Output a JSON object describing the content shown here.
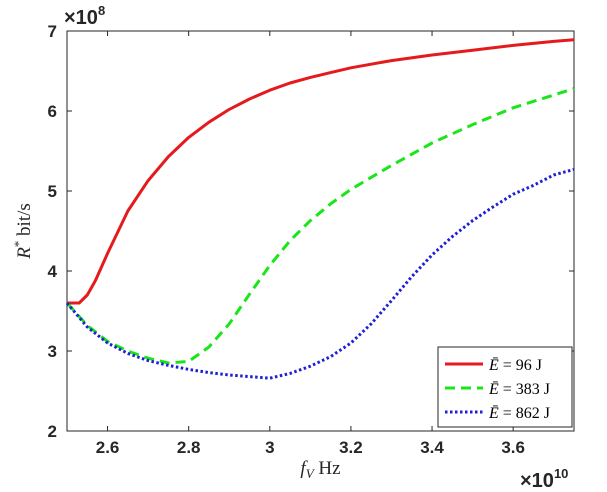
{
  "chart_data": {
    "type": "line",
    "title": "",
    "xlabel": "f_V Hz",
    "ylabel": "R* bit/s",
    "x_multiplier": "×10^10",
    "y_multiplier": "×10^8",
    "xlim": [
      2.5,
      3.75
    ],
    "ylim": [
      2,
      7
    ],
    "xticks": [
      2.6,
      2.8,
      3.0,
      3.2,
      3.4,
      3.6
    ],
    "xtick_labels": [
      "2.6",
      "2.8",
      "3",
      "3.2",
      "3.4",
      "3.6"
    ],
    "yticks": [
      2,
      3,
      4,
      5,
      6,
      7
    ],
    "ytick_labels": [
      "2",
      "3",
      "4",
      "5",
      "6",
      "7"
    ],
    "grid": false,
    "legend_position": "bottom-right",
    "series": [
      {
        "name": "Ē = 96 J",
        "color": "#e41a1c",
        "style": "solid",
        "x": [
          2.5,
          2.51,
          2.53,
          2.55,
          2.57,
          2.6,
          2.65,
          2.7,
          2.75,
          2.8,
          2.85,
          2.9,
          2.95,
          3.0,
          3.05,
          3.1,
          3.15,
          3.2,
          3.3,
          3.4,
          3.5,
          3.6,
          3.7,
          3.75
        ],
        "y": [
          3.6,
          3.6,
          3.6,
          3.7,
          3.88,
          4.22,
          4.75,
          5.13,
          5.43,
          5.67,
          5.86,
          6.02,
          6.15,
          6.26,
          6.35,
          6.42,
          6.48,
          6.54,
          6.63,
          6.7,
          6.76,
          6.82,
          6.87,
          6.89
        ]
      },
      {
        "name": "Ē = 383 J",
        "color": "#19e619",
        "style": "dashed",
        "x": [
          2.5,
          2.55,
          2.6,
          2.65,
          2.7,
          2.75,
          2.8,
          2.85,
          2.9,
          2.95,
          3.0,
          3.05,
          3.1,
          3.15,
          3.2,
          3.3,
          3.4,
          3.5,
          3.6,
          3.7,
          3.75
        ],
        "y": [
          3.6,
          3.32,
          3.12,
          3.0,
          2.91,
          2.85,
          2.87,
          3.05,
          3.34,
          3.71,
          4.07,
          4.38,
          4.63,
          4.84,
          5.02,
          5.32,
          5.6,
          5.83,
          6.04,
          6.2,
          6.28
        ]
      },
      {
        "name": "Ē = 862 J",
        "color": "#1f1fd6",
        "style": "dotted",
        "x": [
          2.5,
          2.55,
          2.6,
          2.65,
          2.7,
          2.75,
          2.8,
          2.85,
          2.9,
          2.95,
          3.0,
          3.05,
          3.1,
          3.15,
          3.2,
          3.25,
          3.3,
          3.35,
          3.4,
          3.45,
          3.5,
          3.55,
          3.6,
          3.65,
          3.7,
          3.75
        ],
        "y": [
          3.6,
          3.3,
          3.1,
          2.97,
          2.88,
          2.82,
          2.77,
          2.73,
          2.7,
          2.68,
          2.66,
          2.72,
          2.81,
          2.93,
          3.1,
          3.34,
          3.63,
          3.93,
          4.2,
          4.43,
          4.63,
          4.8,
          4.96,
          5.07,
          5.2,
          5.27
        ]
      }
    ]
  }
}
